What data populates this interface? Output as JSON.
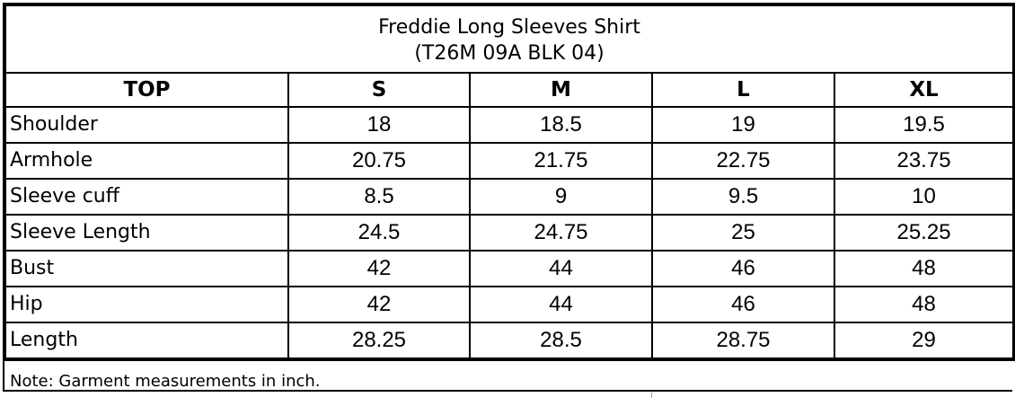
{
  "table": {
    "title": "Freddie Long Sleeves Shirt",
    "subtitle": "(T26M 09A BLK 04)",
    "headers": [
      "TOP",
      "S",
      "M",
      "L",
      "XL"
    ],
    "rows": [
      {
        "label": "Shoulder",
        "values": [
          "18",
          "18.5",
          "19",
          "19.5"
        ]
      },
      {
        "label": "Armhole",
        "values": [
          "20.75",
          "21.75",
          "22.75",
          "23.75"
        ]
      },
      {
        "label": "Sleeve cuff",
        "values": [
          "8.5",
          "9",
          "9.5",
          "10"
        ]
      },
      {
        "label": "Sleeve Length",
        "values": [
          "24.5",
          "24.75",
          "25",
          "25.25"
        ]
      },
      {
        "label": "Bust",
        "values": [
          "42",
          "44",
          "46",
          "48"
        ]
      },
      {
        "label": "Hip",
        "values": [
          "42",
          "44",
          "46",
          "48"
        ]
      },
      {
        "label": "Length",
        "values": [
          "28.25",
          "28.5",
          "28.75",
          "29"
        ]
      }
    ],
    "note": "Note: Garment measurements in inch."
  }
}
